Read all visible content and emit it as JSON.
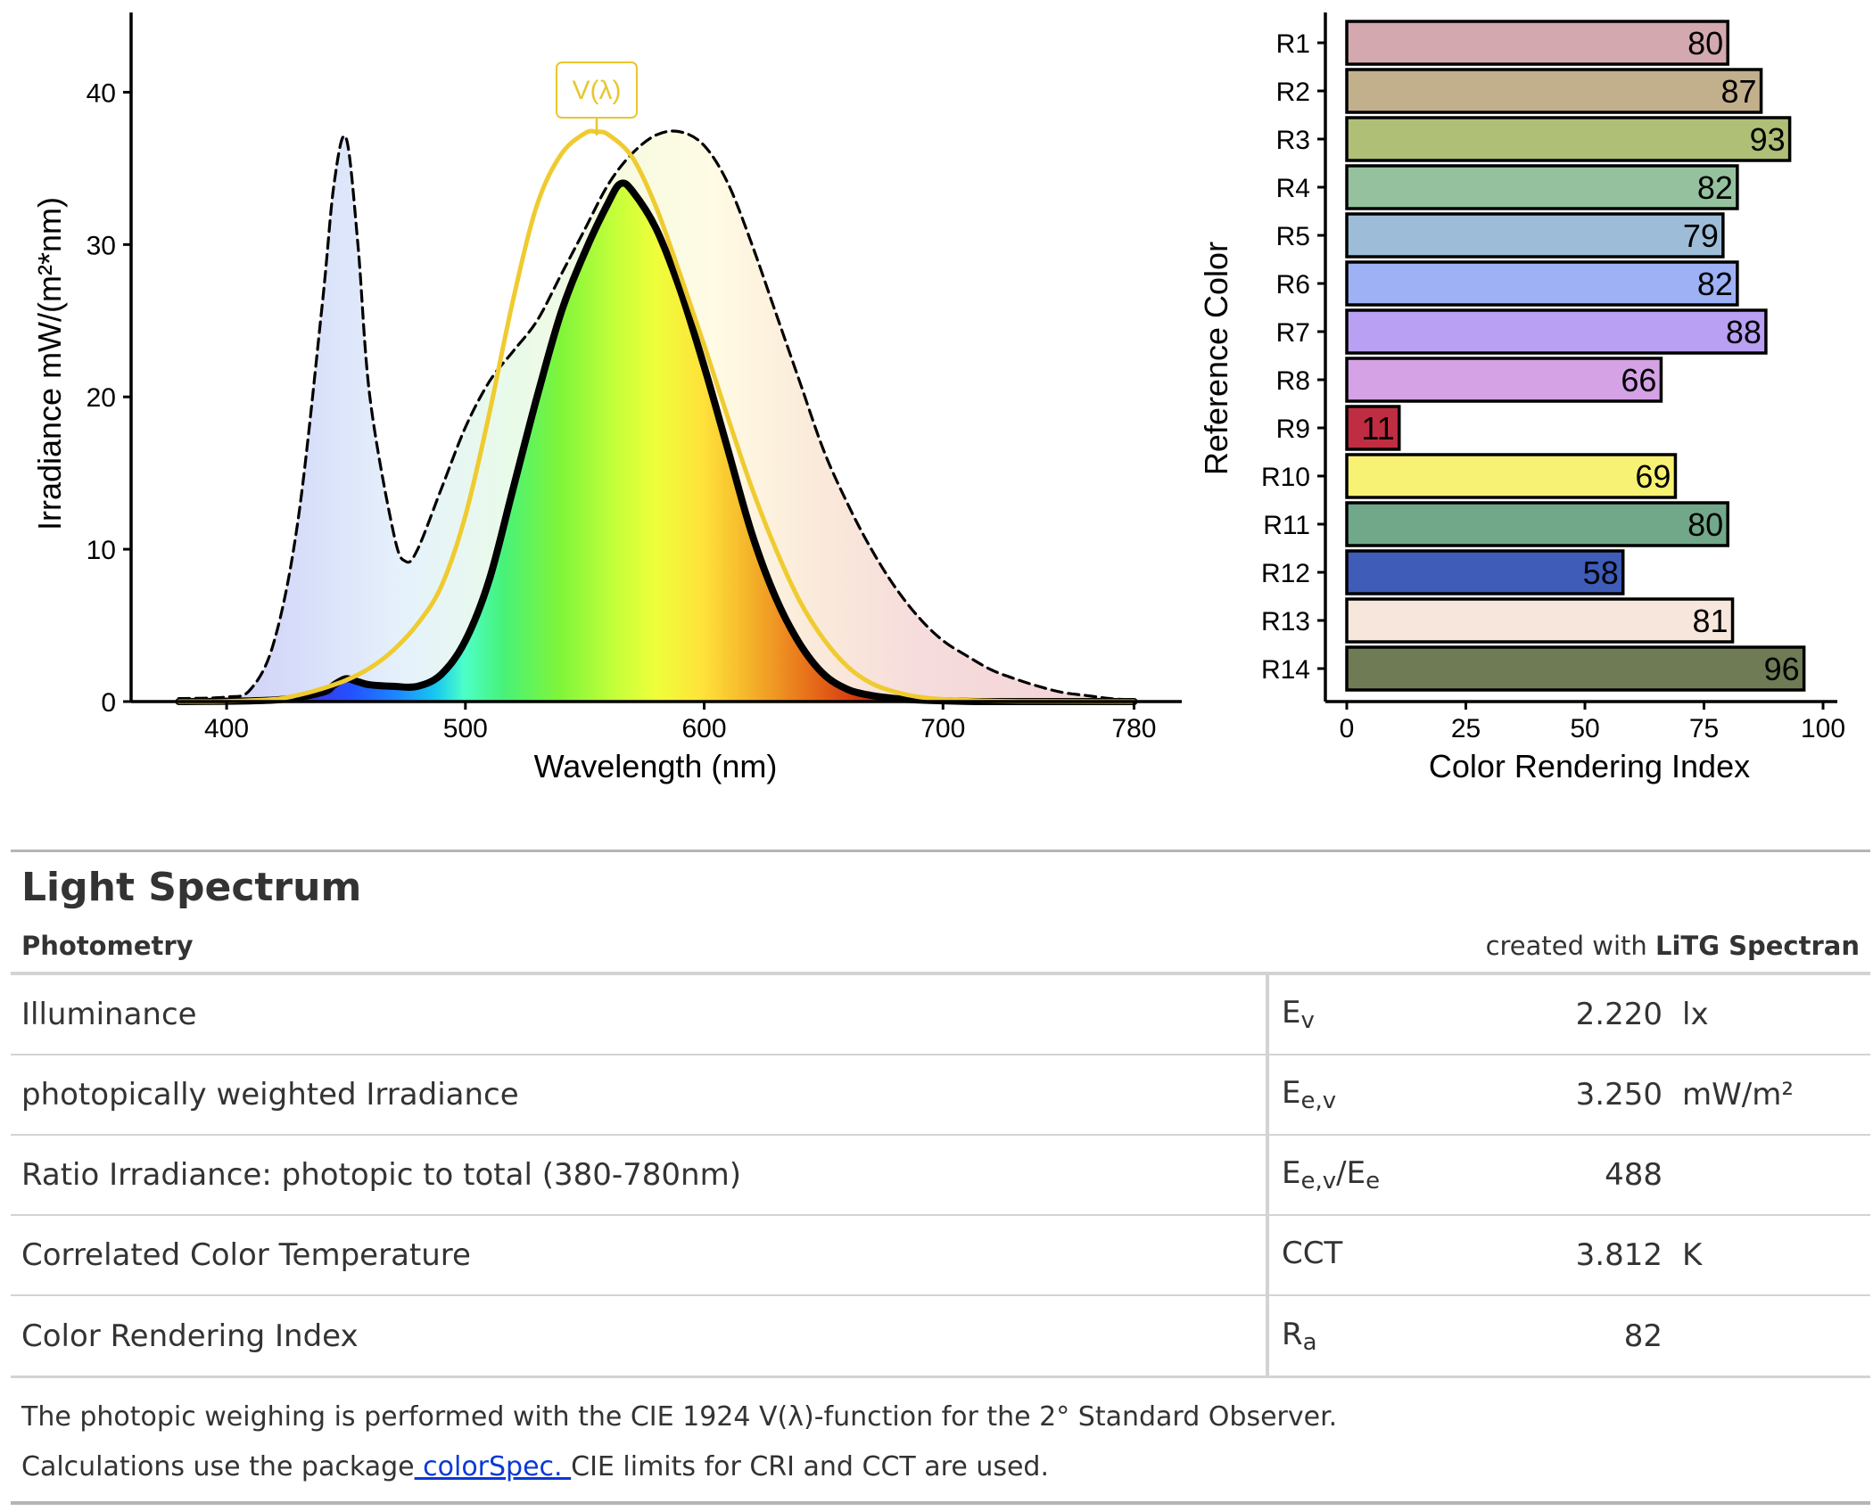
{
  "chart_data": [
    {
      "type": "area",
      "xlabel": "Wavelength (nm)",
      "ylabel": "Irradiance  mW/(m²*nm)",
      "xlim": [
        360,
        800
      ],
      "ylim": [
        0,
        45
      ],
      "xticks": [
        400,
        500,
        600,
        700,
        780
      ],
      "yticks": [
        0,
        10,
        20,
        30,
        40
      ],
      "grid": false,
      "annotations": [
        "V(λ)"
      ],
      "series": [
        {
          "style": "dashed-black-outline, spectrum-tinted fill",
          "x": [
            380,
            400,
            410,
            420,
            430,
            440,
            445,
            450,
            455,
            460,
            470,
            475,
            480,
            490,
            500,
            510,
            520,
            530,
            540,
            550,
            560,
            570,
            580,
            590,
            600,
            610,
            620,
            630,
            640,
            650,
            660,
            670,
            680,
            690,
            700,
            710,
            720,
            730,
            740,
            750,
            760,
            770,
            780
          ],
          "y": [
            0.2,
            0.3,
            0.8,
            4,
            12,
            26,
            34,
            37,
            30,
            20,
            11,
            9.2,
            10,
            14,
            18,
            21,
            23,
            25,
            28,
            31,
            34,
            36,
            37.2,
            37.4,
            36.5,
            34,
            30,
            25.5,
            21,
            16.5,
            13,
            10,
            7.5,
            5.5,
            4,
            3,
            2.1,
            1.5,
            1,
            0.6,
            0.4,
            0.2,
            0.1
          ]
        },
        {
          "style": "thick-black, rainbow fill",
          "x": [
            380,
            420,
            440,
            445,
            450,
            455,
            460,
            470,
            480,
            490,
            500,
            510,
            520,
            530,
            540,
            550,
            560,
            565,
            570,
            580,
            590,
            600,
            610,
            620,
            630,
            640,
            650,
            660,
            670,
            680,
            690,
            700,
            720,
            780
          ],
          "y": [
            0,
            0.1,
            0.6,
            1.1,
            1.5,
            1.3,
            1.1,
            1.0,
            1.0,
            1.8,
            4,
            8,
            14,
            20,
            25.5,
            29.5,
            32.8,
            34,
            33.5,
            31,
            27,
            22,
            16.5,
            11,
            6.8,
            3.8,
            1.8,
            0.8,
            0.4,
            0.2,
            0.1,
            0.05,
            0,
            0
          ]
        },
        {
          "name": "V(λ)",
          "style": "gold line",
          "x": [
            380,
            400,
            420,
            430,
            440,
            450,
            460,
            470,
            480,
            490,
            500,
            510,
            520,
            530,
            540,
            550,
            555,
            560,
            570,
            580,
            590,
            600,
            610,
            620,
            630,
            640,
            650,
            660,
            670,
            680,
            690,
            700,
            720,
            740,
            780
          ],
          "y": [
            0,
            0.02,
            0.15,
            0.43,
            0.85,
            1.4,
            2.2,
            3.4,
            5.1,
            7.6,
            12.2,
            18.9,
            26.4,
            32.6,
            35.9,
            37.3,
            37.4,
            37.2,
            35.7,
            32.4,
            28,
            23.4,
            18.6,
            14,
            10,
            6.6,
            4.1,
            2.3,
            1.2,
            0.63,
            0.3,
            0.15,
            0.04,
            0.01,
            0
          ]
        }
      ]
    },
    {
      "type": "bar",
      "orientation": "horizontal",
      "xlabel": "Color Rendering Index",
      "ylabel": "Reference Color",
      "xlim": [
        0,
        100
      ],
      "xticks": [
        0,
        25,
        50,
        75,
        100
      ],
      "grid": false,
      "categories": [
        "R1",
        "R2",
        "R3",
        "R4",
        "R5",
        "R6",
        "R7",
        "R8",
        "R9",
        "R10",
        "R11",
        "R12",
        "R13",
        "R14"
      ],
      "values": [
        80,
        87,
        93,
        82,
        79,
        82,
        88,
        66,
        11,
        69,
        80,
        58,
        81,
        96
      ],
      "colors": [
        "#d3a8af",
        "#c2b08d",
        "#afbf76",
        "#95c19e",
        "#9dbcd8",
        "#9db1f4",
        "#b9a0f2",
        "#d5a2e6",
        "#bf2d42",
        "#f7f174",
        "#71a88a",
        "#3e5cb8",
        "#f6e6db",
        "#6e7b55"
      ]
    }
  ],
  "summary": {
    "title": "Light Spectrum",
    "subtitle": "Photometry",
    "credit_prefix": "created with ",
    "credit_name": "LiTG Spectran",
    "rows": [
      {
        "name": "Illuminance",
        "sym": "E",
        "sub": "v",
        "sym_tail": "",
        "sub2": "",
        "value": "2.220",
        "unit": "lx"
      },
      {
        "name": "photopically weighted Irradiance",
        "sym": "E",
        "sub": "e,v",
        "sym_tail": "",
        "sub2": "",
        "value": "3.250",
        "unit": "mW/m²"
      },
      {
        "name": "Ratio Irradiance: photopic to total (380-780nm)",
        "sym": "E",
        "sub": "e,v",
        "sym_tail": "/E",
        "sub2": "e",
        "value": "488",
        "unit": ""
      },
      {
        "name": "Correlated Color Temperature",
        "sym": "CCT",
        "sub": "",
        "sym_tail": "",
        "sub2": "",
        "value": "3.812",
        "unit": "K"
      },
      {
        "name": "Color Rendering Index",
        "sym": "R",
        "sub": "a",
        "sym_tail": "",
        "sub2": "",
        "value": "82",
        "unit": ""
      }
    ],
    "footnote1": "The photopic weighing is performed with the CIE 1924 V(λ)-function for the 2° Standard Observer.",
    "footnote2_pre": "Calculations use the package",
    "footnote2_link": " colorSpec. ",
    "footnote2_post": "CIE limits for CRI and CCT are used."
  }
}
